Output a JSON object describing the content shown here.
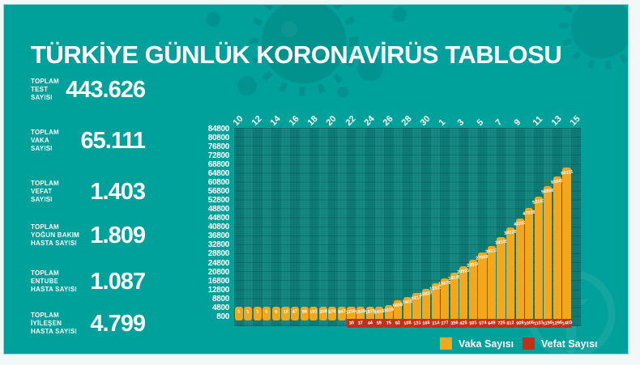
{
  "title": "TÜRKİYE GÜNLÜK KORONAVİRÜS TABLOSU",
  "stats": [
    {
      "label_lines": [
        "TOPLAM",
        "TEST",
        "SAYISI"
      ],
      "value": "443.626"
    },
    {
      "label_lines": [
        "TOPLAM",
        "VAKA",
        "SAYISI"
      ],
      "value": "65.111"
    },
    {
      "label_lines": [
        "TOPLAM",
        "VEFAT",
        "SAYISI"
      ],
      "value": "1.403"
    },
    {
      "label_lines": [
        "TOPLAM",
        "YOĞUN BAKIM",
        "HASTA SAYISI"
      ],
      "value": "1.809"
    },
    {
      "label_lines": [
        "TOPLAM",
        "ENTUBE",
        "HASTA SAYISI"
      ],
      "value": "1.087"
    },
    {
      "label_lines": [
        "TOPLAM",
        "İYİLEŞEN",
        "HASTA SAYISI"
      ],
      "value": "4.799"
    }
  ],
  "chart_data": {
    "type": "bar",
    "title": "",
    "x_tick_labels": [
      "10",
      "12",
      "14",
      "16",
      "18",
      "20",
      "22",
      "24",
      "26",
      "28",
      "30",
      "1",
      "3",
      "5",
      "7",
      "9",
      "11",
      "13",
      "15"
    ],
    "y_ticks": [
      84800,
      80800,
      76800,
      72800,
      68800,
      64800,
      60800,
      56800,
      52800,
      48800,
      44800,
      40800,
      36800,
      32800,
      28800,
      24800,
      20800,
      16800,
      12800,
      8800,
      4800,
      800
    ],
    "ylim": [
      800,
      84800
    ],
    "grid": true,
    "legend_position": "bottom-right",
    "series": [
      {
        "name": "Vaka Sayısı",
        "color": "#f3a71d",
        "values": [
          1,
          1,
          1,
          5,
          6,
          18,
          47,
          98,
          191,
          359,
          670,
          947,
          1236,
          1529,
          1872,
          2433,
          3629,
          5698,
          7402,
          9217,
          10827,
          13531,
          15679,
          18135,
          20921,
          23934,
          27069,
          30217,
          34109,
          38226,
          42282,
          47029,
          52167,
          56956,
          61049,
          65111
        ]
      },
      {
        "name": "Vefat Sayısı",
        "color": "#c2301b",
        "values": [
          0,
          0,
          0,
          0,
          0,
          0,
          0,
          1,
          2,
          4,
          9,
          21,
          30,
          37,
          44,
          59,
          75,
          92,
          108,
          131,
          168,
          214,
          277,
          356,
          425,
          501,
          574,
          649,
          725,
          812,
          908,
          1006,
          1101,
          1198,
          1296,
          1403
        ]
      }
    ]
  },
  "legend": [
    {
      "label": "Vaka Sayısı",
      "color": "#f3a71d"
    },
    {
      "label": "Vefat Sayısı",
      "color": "#c2301b"
    }
  ],
  "colors": {
    "background": "#00a09b",
    "plot_stripe_dark": "#0e7e79",
    "plot_stripe_light": "#178b85",
    "bar_case": "#f3a71d",
    "bar_death": "#c2301b",
    "text": "#ffffff"
  }
}
